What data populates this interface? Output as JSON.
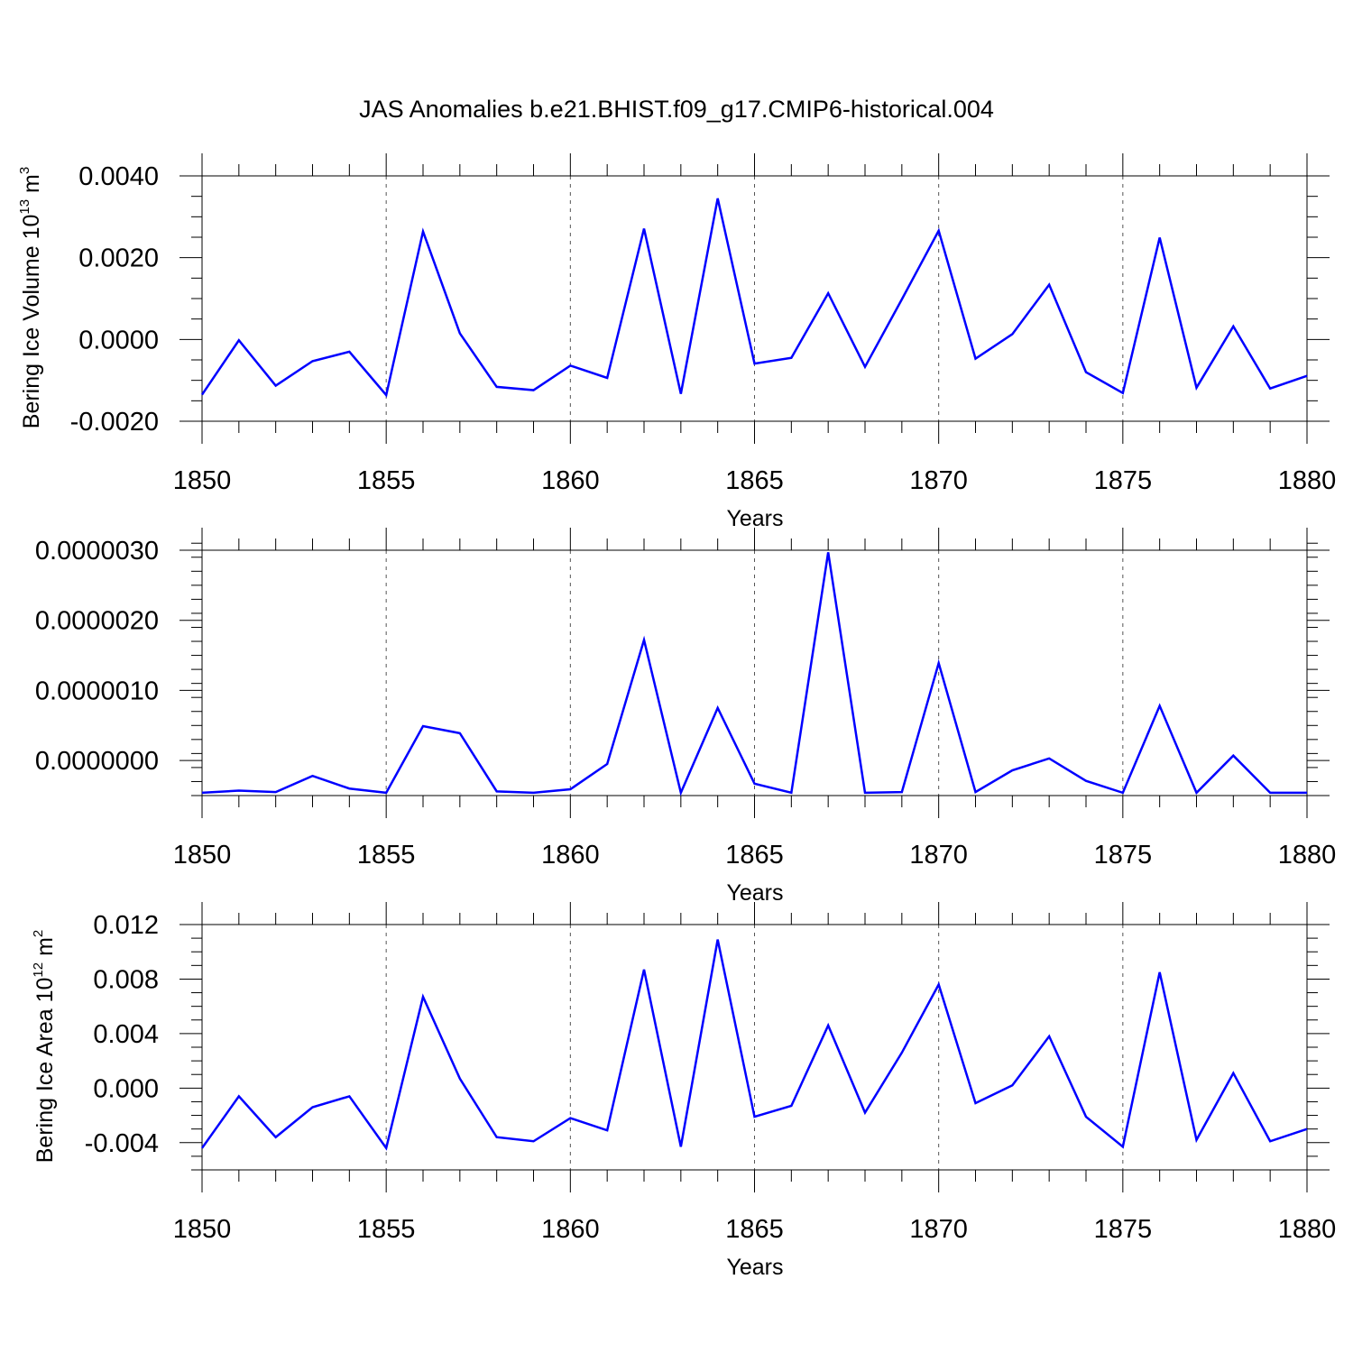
{
  "title": "JAS Anomalies b.e21.BHIST.f09_g17.CMIP6-historical.004",
  "colors": {
    "series": "#0000ff",
    "axis": "#000000",
    "grid": "#555555"
  },
  "chart_data": [
    {
      "type": "line",
      "ylabel": "Bering Ice Volume 10",
      "ylabel_sup1": "13",
      "ylabel_unit": " m",
      "ylabel_sup2": "3",
      "xlabel": "Years",
      "xlim": [
        1850,
        1880
      ],
      "ylim": [
        -0.002,
        0.004
      ],
      "grid_x": [
        1855,
        1860,
        1865,
        1870,
        1875
      ],
      "x_ticks": [
        1850,
        1855,
        1860,
        1865,
        1870,
        1875,
        1880
      ],
      "x_tick_labels": [
        "1850",
        "1855",
        "1860",
        "1865",
        "1870",
        "1875",
        "1880"
      ],
      "y_ticks": [
        0.004,
        0.002,
        0.0,
        -0.002
      ],
      "y_tick_labels": [
        "0.0040",
        "0.0020",
        "0.0000",
        "-0.0020"
      ],
      "y_minor_step": 0.0005,
      "series": [
        {
          "name": "Bering Ice Volume",
          "x": [
            1850,
            1851,
            1852,
            1853,
            1854,
            1855,
            1856,
            1857,
            1858,
            1859,
            1860,
            1861,
            1862,
            1863,
            1864,
            1865,
            1866,
            1867,
            1868,
            1869,
            1870,
            1871,
            1872,
            1873,
            1874,
            1875,
            1876,
            1877,
            1878,
            1879,
            1880
          ],
          "values": [
            -0.00135,
            -2e-05,
            -0.00113,
            -0.00053,
            -0.0003,
            -0.00136,
            0.00264,
            0.00015,
            -0.00116,
            -0.00124,
            -0.00064,
            -0.00094,
            0.00271,
            -0.00133,
            0.00345,
            -0.00059,
            -0.00045,
            0.00113,
            -0.00067,
            0.00098,
            0.00266,
            -0.00047,
            0.00013,
            0.00134,
            -0.0008,
            -0.00131,
            0.00249,
            -0.00118,
            0.00032,
            -0.0012,
            -0.00089
          ]
        }
      ]
    },
    {
      "type": "line",
      "ylabel": "",
      "xlabel": "Years",
      "xlim": [
        1850,
        1880
      ],
      "ylim": [
        -5e-07,
        3e-06
      ],
      "grid_x": [
        1855,
        1860,
        1865,
        1870,
        1875
      ],
      "x_ticks": [
        1850,
        1855,
        1860,
        1865,
        1870,
        1875,
        1880
      ],
      "x_tick_labels": [
        "1850",
        "1855",
        "1860",
        "1865",
        "1870",
        "1875",
        "1880"
      ],
      "y_ticks": [
        3e-06,
        2e-06,
        1e-06,
        0.0
      ],
      "y_tick_labels": [
        "0.0000030",
        "0.0000020",
        "0.0000010",
        "0.0000000"
      ],
      "y_minor_step": 2e-07,
      "series": [
        {
          "name": "Anomaly",
          "x": [
            1850,
            1851,
            1852,
            1853,
            1854,
            1855,
            1856,
            1857,
            1858,
            1859,
            1860,
            1861,
            1862,
            1863,
            1864,
            1865,
            1866,
            1867,
            1868,
            1869,
            1870,
            1871,
            1872,
            1873,
            1874,
            1875,
            1876,
            1877,
            1878,
            1879,
            1880
          ],
          "values": [
            -4.6e-07,
            -4.3e-07,
            -4.5e-07,
            -2.2e-07,
            -4e-07,
            -4.6e-07,
            4.9e-07,
            3.9e-07,
            -4.4e-07,
            -4.6e-07,
            -4.1e-07,
            -5e-08,
            1.72e-06,
            -4.6e-07,
            7.5e-07,
            -3.3e-07,
            -4.6e-07,
            2.97e-06,
            -4.6e-07,
            -4.5e-07,
            1.39e-06,
            -4.5e-07,
            -1.4e-07,
            3e-08,
            -2.9e-07,
            -4.6e-07,
            7.8e-07,
            -4.6e-07,
            7e-08,
            -4.6e-07,
            -4.6e-07
          ]
        }
      ]
    },
    {
      "type": "line",
      "ylabel": "Bering Ice Area 10",
      "ylabel_sup1": "12",
      "ylabel_unit": " m",
      "ylabel_sup2": "2",
      "xlabel": "Years",
      "xlim": [
        1850,
        1880
      ],
      "ylim": [
        -0.006,
        0.012
      ],
      "grid_x": [
        1855,
        1860,
        1865,
        1870,
        1875
      ],
      "x_ticks": [
        1850,
        1855,
        1860,
        1865,
        1870,
        1875,
        1880
      ],
      "x_tick_labels": [
        "1850",
        "1855",
        "1860",
        "1865",
        "1870",
        "1875",
        "1880"
      ],
      "y_ticks": [
        0.012,
        0.008,
        0.004,
        0.0,
        -0.004
      ],
      "y_tick_labels": [
        "0.012",
        "0.008",
        "0.004",
        "0.000",
        "-0.004"
      ],
      "y_minor_step": 0.001,
      "series": [
        {
          "name": "Bering Ice Area",
          "x": [
            1850,
            1851,
            1852,
            1853,
            1854,
            1855,
            1856,
            1857,
            1858,
            1859,
            1860,
            1861,
            1862,
            1863,
            1864,
            1865,
            1866,
            1867,
            1868,
            1869,
            1870,
            1871,
            1872,
            1873,
            1874,
            1875,
            1876,
            1877,
            1878,
            1879,
            1880
          ],
          "values": [
            -0.0044,
            -0.0006,
            -0.0036,
            -0.0014,
            -0.0006,
            -0.0044,
            0.0067,
            0.0007,
            -0.0036,
            -0.0039,
            -0.0022,
            -0.0031,
            0.0087,
            -0.0043,
            0.0109,
            -0.0021,
            -0.0013,
            0.0046,
            -0.0018,
            0.0026,
            0.0076,
            -0.0011,
            0.0002,
            0.0038,
            -0.0021,
            -0.0043,
            0.0085,
            -0.0038,
            0.0011,
            -0.0039,
            -0.003
          ]
        }
      ]
    }
  ]
}
